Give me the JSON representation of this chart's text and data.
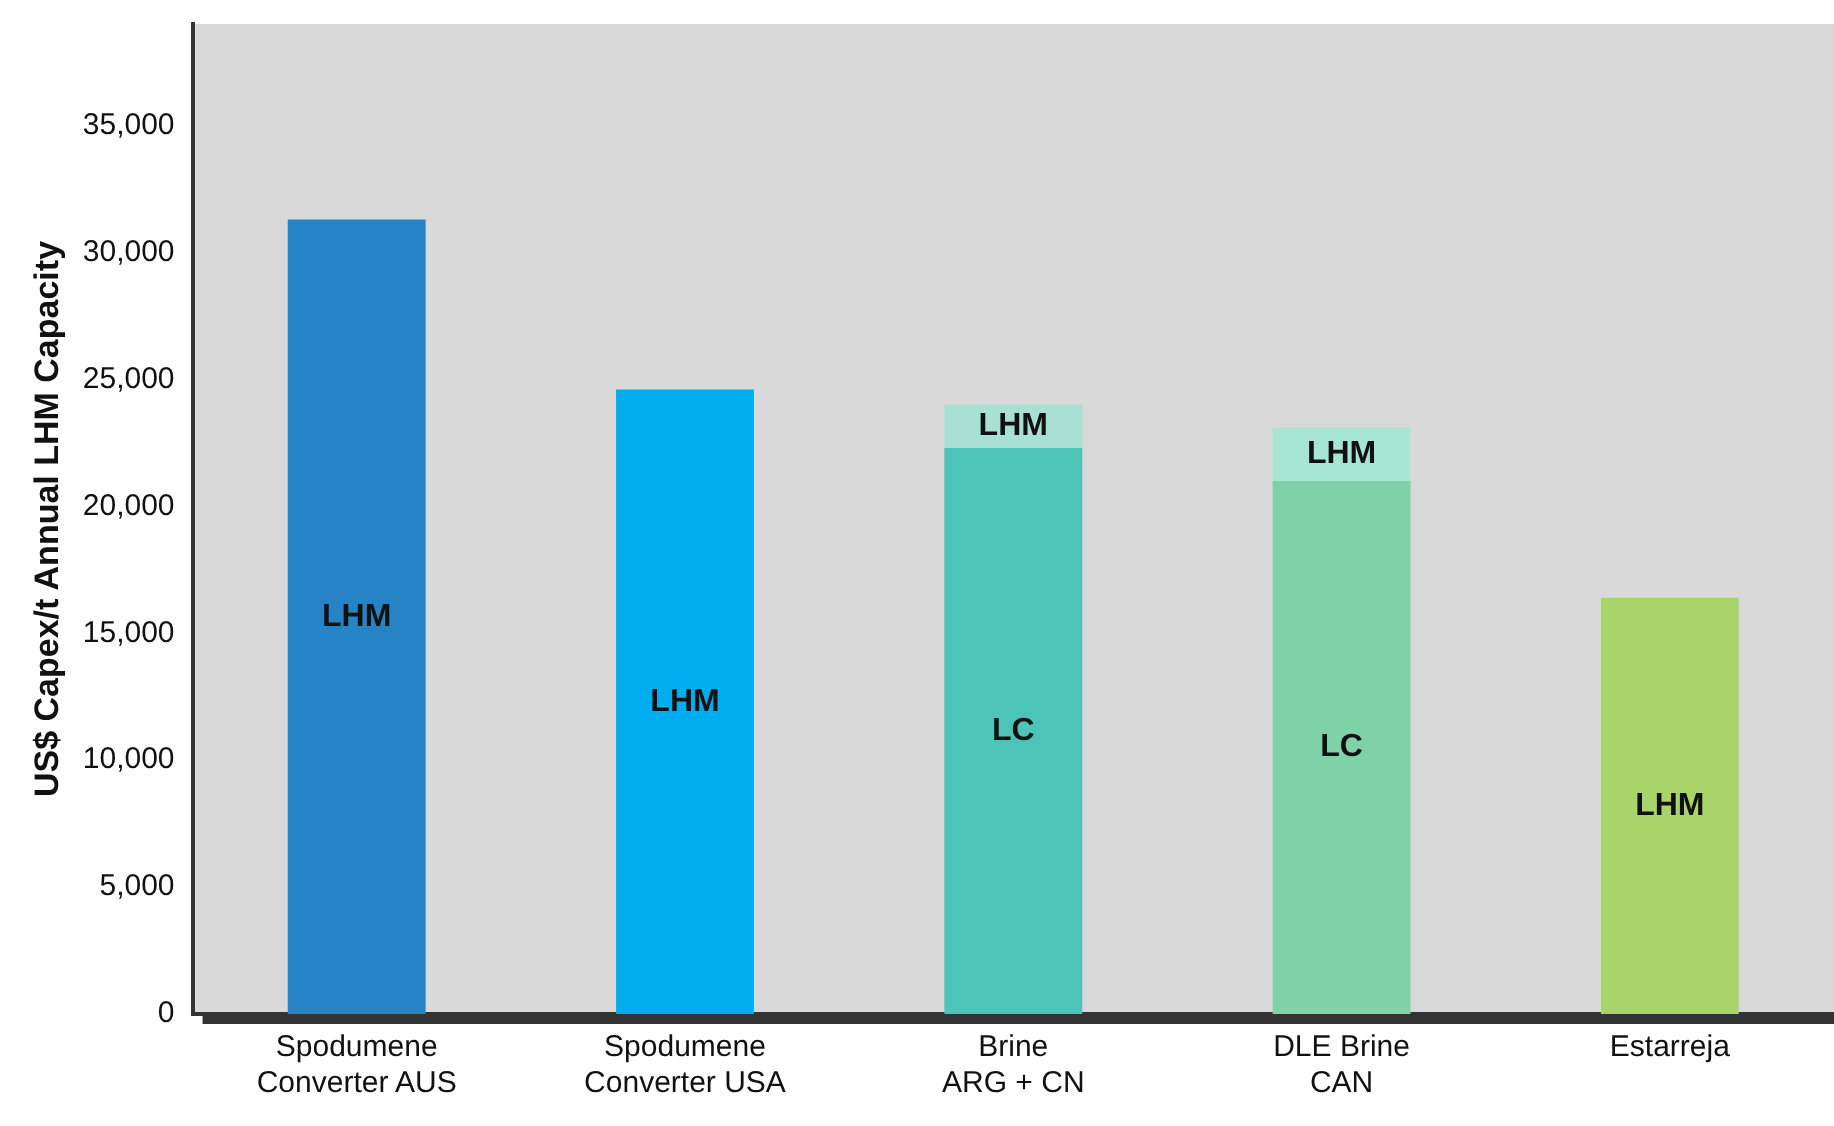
{
  "chart_data": {
    "type": "bar",
    "stacked": true,
    "ylabel": "US$ Capex/t Annual LHM Capacity",
    "categories": [
      "Spodumene\nConverter AUS",
      "Spodumene\nConverter USA",
      "Brine\nARG + CN",
      "DLE Brine\nCAN",
      "Estarreja"
    ],
    "series": [
      {
        "name": "LC",
        "colors": [
          null,
          null,
          "#4cc4b8",
          "#7fd1a8",
          null
        ],
        "values": [
          null,
          null,
          22300,
          21000,
          null
        ]
      },
      {
        "name": "LHM",
        "colors": [
          "#2683c6",
          "#00aeef",
          "#a8e0d4",
          "#a8e6d4",
          "#a8d46a"
        ],
        "values": [
          31300,
          24600,
          1700,
          2100,
          16400
        ]
      }
    ],
    "ylim": [
      0,
      39000
    ],
    "yticks": [
      {
        "value": 0,
        "label": "0"
      },
      {
        "value": 5000,
        "label": "5,000"
      },
      {
        "value": 10000,
        "label": "10,000"
      },
      {
        "value": 15000,
        "label": "15,000"
      },
      {
        "value": 20000,
        "label": "20,000"
      },
      {
        "value": 25000,
        "label": "25,000"
      },
      {
        "value": 30000,
        "label": "30,000"
      },
      {
        "value": 35000,
        "label": "35,000"
      }
    ],
    "grid": false,
    "legend": false
  }
}
